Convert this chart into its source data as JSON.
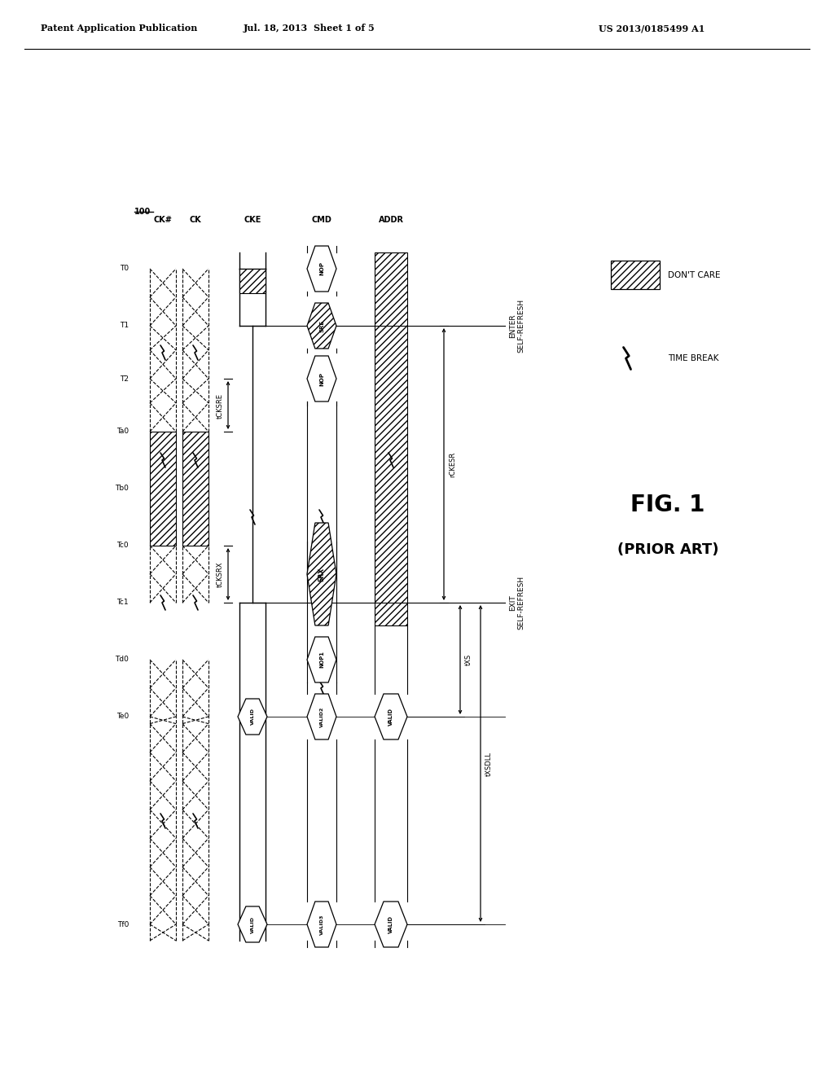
{
  "title_left": "Patent Application Publication",
  "title_mid": "Jul. 18, 2013  Sheet 1 of 5",
  "title_right": "US 2013/0185499 A1",
  "fig_label": "FIG. 1",
  "fig_sublabel": "(PRIOR ART)",
  "diagram_label": "100",
  "bg_color": "#ffffff"
}
